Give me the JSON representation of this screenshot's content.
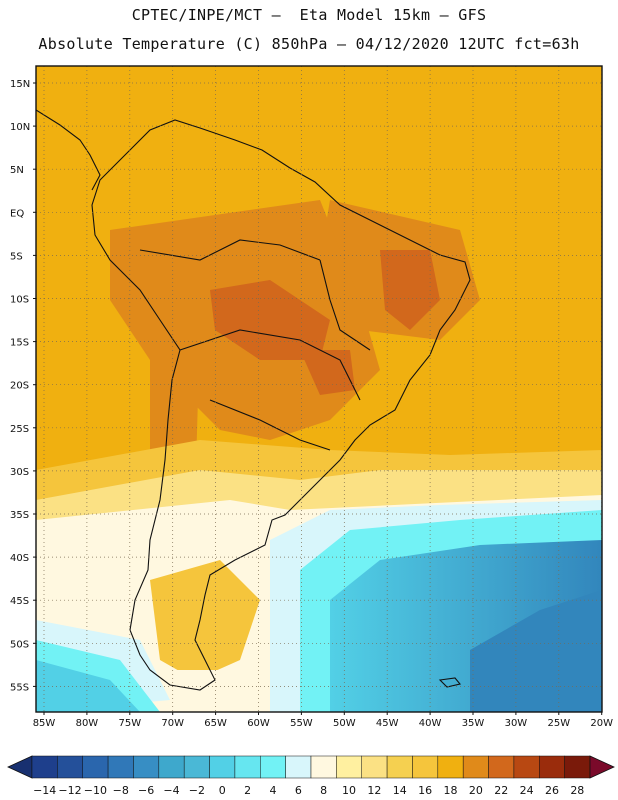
{
  "header": {
    "line1": "CPTEC/INPE/MCT –  Eta Model 15km – GFS",
    "line2": "Absolute Temperature (C) 850hPa – 04/12/2020 12UTC fct=63h"
  },
  "map": {
    "lat_labels": [
      "15N",
      "10N",
      "5N",
      "EQ",
      "5S",
      "10S",
      "15S",
      "20S",
      "25S",
      "30S",
      "35S",
      "40S",
      "45S",
      "50S",
      "55S"
    ],
    "lon_labels": [
      "85W",
      "80W",
      "75W",
      "70W",
      "65W",
      "60W",
      "55W",
      "50W",
      "45W",
      "40W",
      "35W",
      "30W",
      "25W",
      "20W"
    ],
    "palette": {
      "orange": "#f0b010",
      "dark_orange": "#e08a1a",
      "deep_orange": "#d2681c",
      "warm_yellow": "#f5c53c",
      "light_yellow": "#fbe184",
      "pale_cream": "#fff8e0",
      "pale_cyan": "#d8f6fb",
      "cyan": "#72f2f5",
      "light_blue": "#52d0e6",
      "teal_blue": "#3ea8cc",
      "mid_blue": "#3286bc",
      "coast_line": "#111111"
    }
  },
  "colorbar": {
    "labels": [
      "-14",
      "-12",
      "-10",
      "-8",
      "-6",
      "-4",
      "-2",
      "0",
      "2",
      "4",
      "6",
      "8",
      "10",
      "12",
      "14",
      "16",
      "18",
      "20",
      "22",
      "24",
      "26",
      "28"
    ],
    "colors": [
      "#1e3f8c",
      "#24509a",
      "#2a66ad",
      "#3078b8",
      "#378ec4",
      "#3ea8cc",
      "#4ab8d6",
      "#52d0e6",
      "#66e6f0",
      "#72f2f5",
      "#d8f6fb",
      "#fff8e0",
      "#fff0a0",
      "#fbe184",
      "#f5d050",
      "#f5c53c",
      "#f0b010",
      "#e08a1a",
      "#d2681c",
      "#b84812",
      "#9a2c0c",
      "#7a1a0a"
    ],
    "end_low": "#183070",
    "end_high": "#7a0a2a"
  }
}
